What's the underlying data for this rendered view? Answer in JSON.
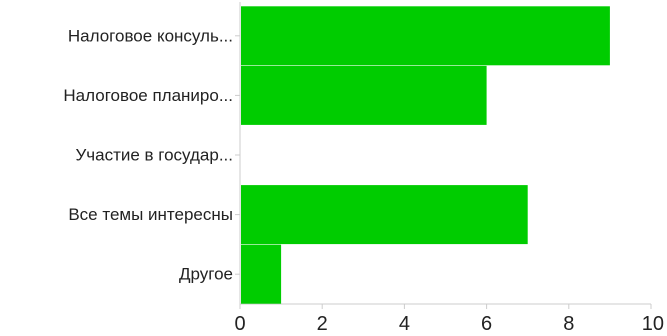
{
  "chart_data": {
    "type": "bar",
    "orientation": "horizontal",
    "categories": [
      "Налоговое консуль...",
      "Налоговое планиро...",
      "Участие в государ...",
      "Все темы интересны",
      "Другое"
    ],
    "values": [
      9,
      6,
      0,
      7,
      1
    ],
    "xlim": [
      0,
      10
    ],
    "xticks": [
      "0",
      "2",
      "4",
      "6",
      "8",
      "10"
    ],
    "title": "",
    "xlabel": "",
    "ylabel": "",
    "grid": false,
    "legend": "none",
    "bar_color": "#00cc00",
    "axis_color": "#cccccc"
  }
}
